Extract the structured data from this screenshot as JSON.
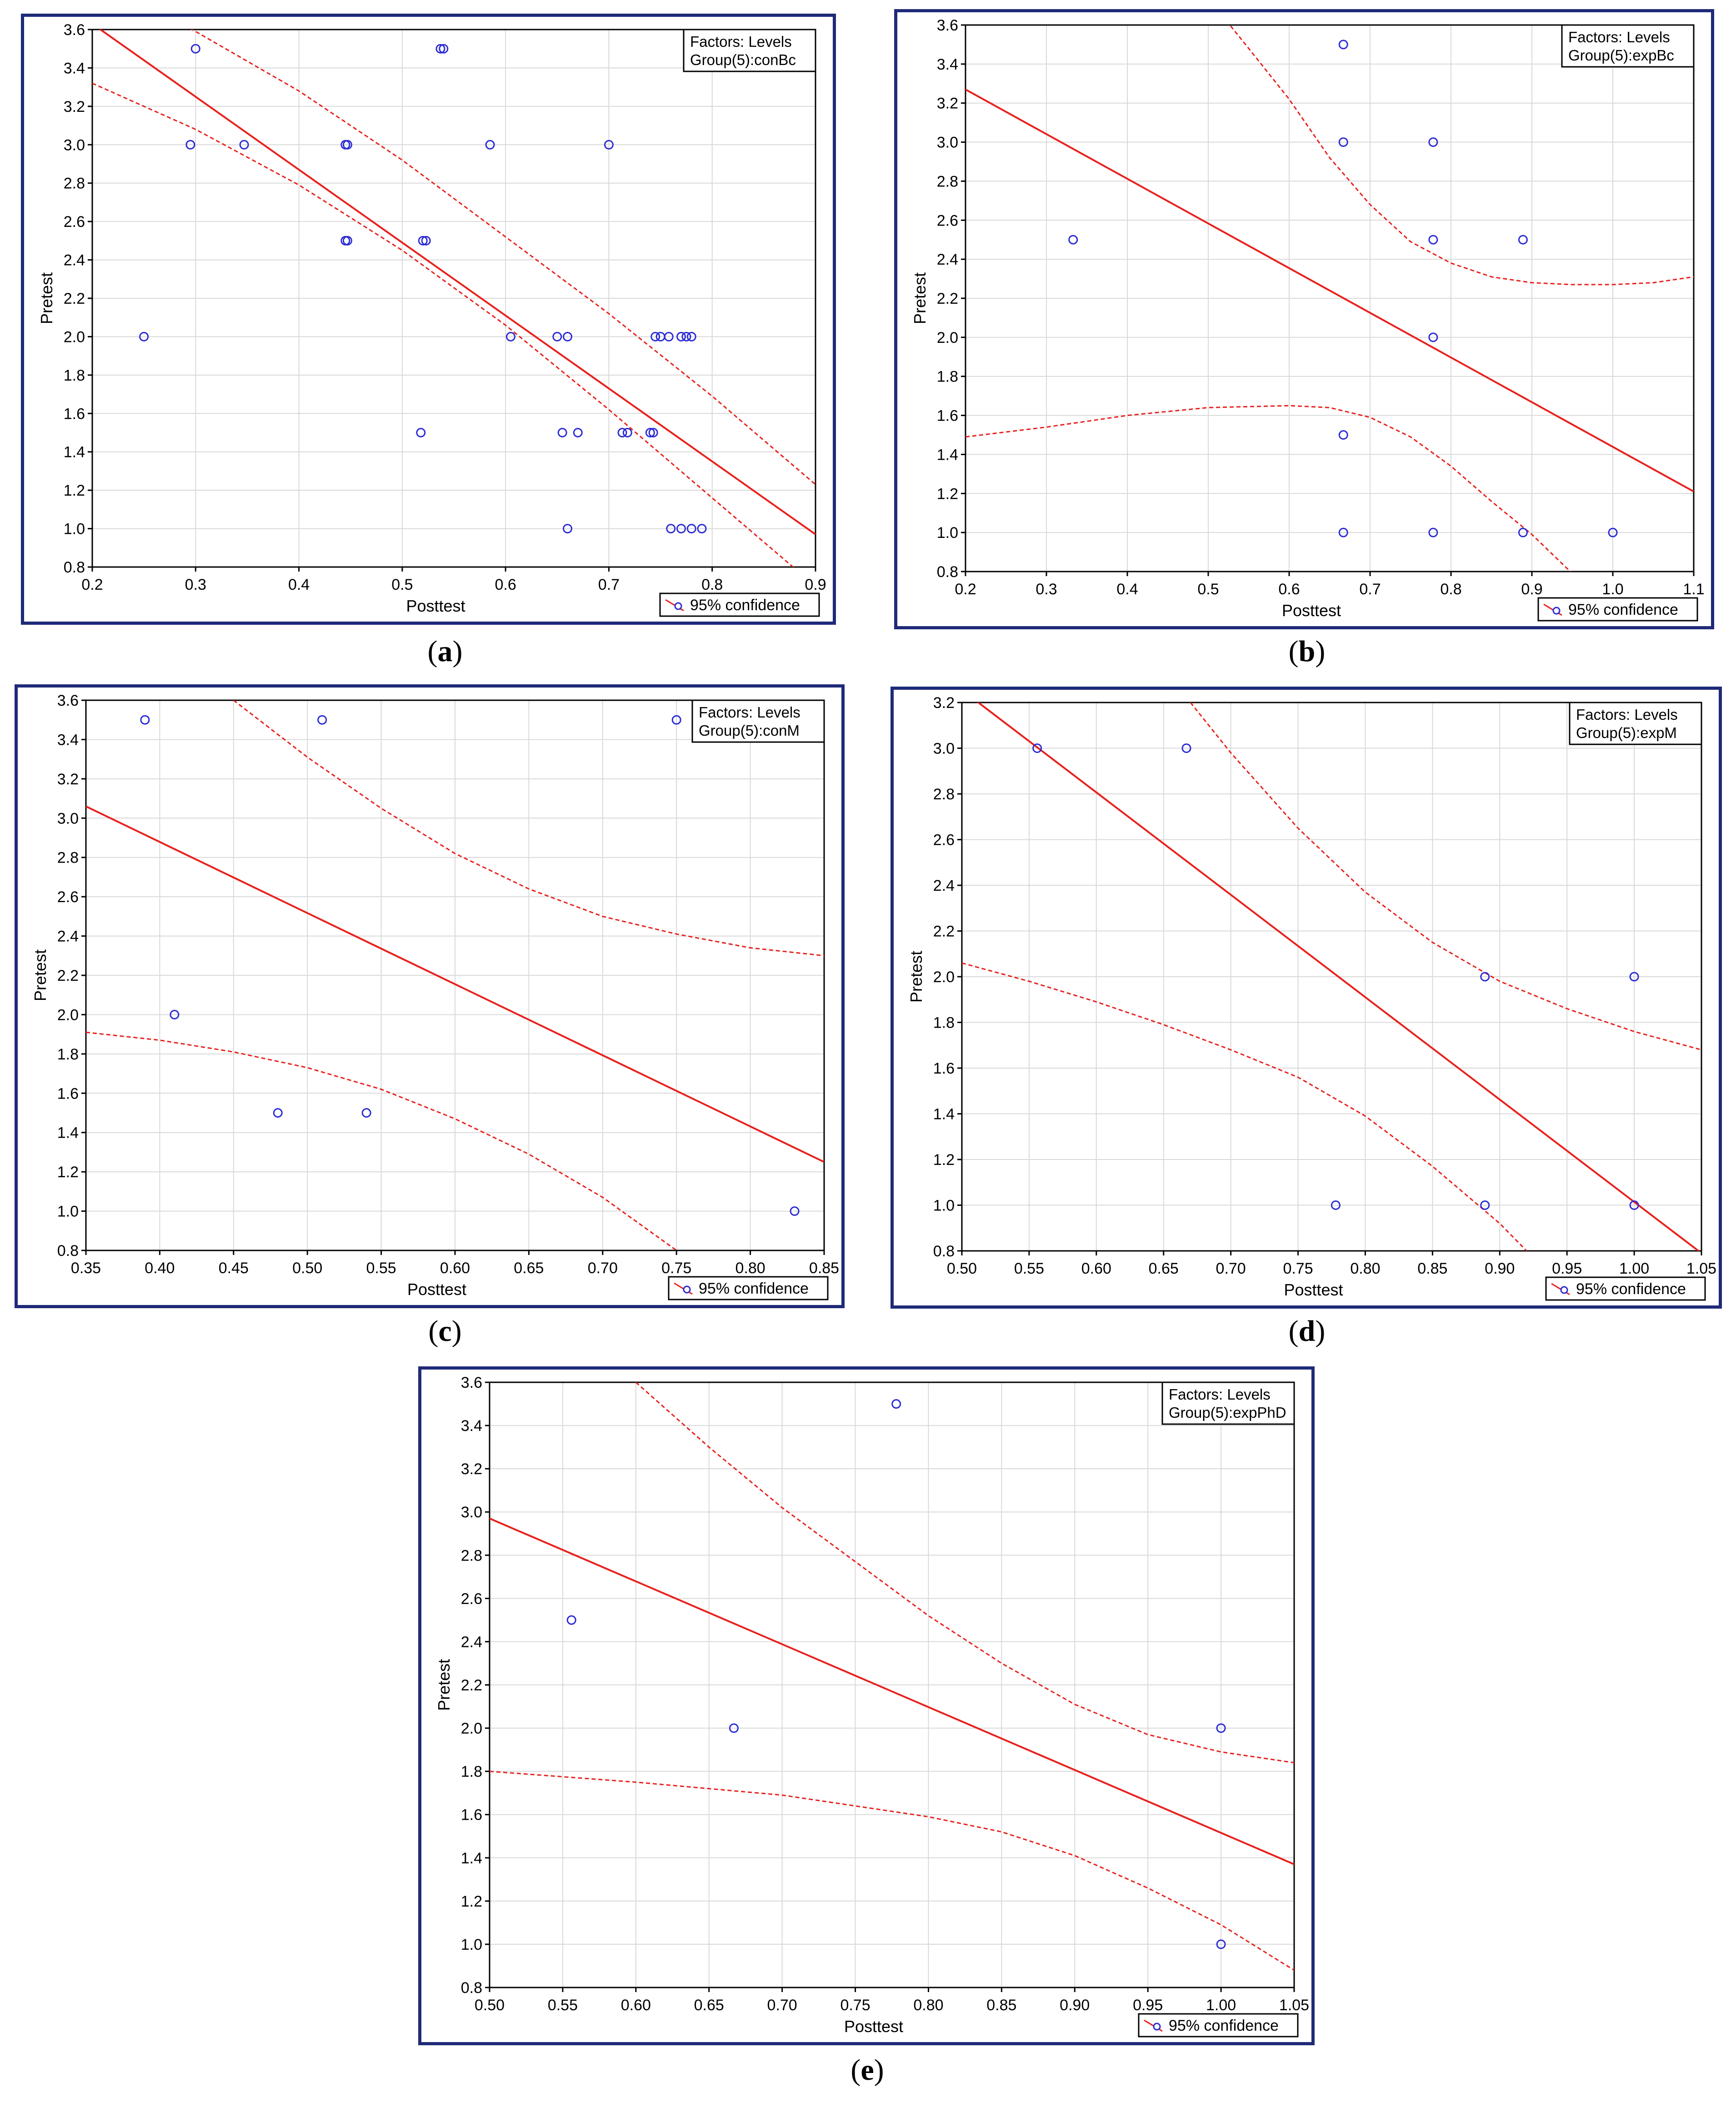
{
  "chart_data": [
    {
      "type": "scatter",
      "panel_label": "a",
      "xlabel": "Posttest",
      "ylabel": "Pretest",
      "xlim": [
        0.2,
        0.9
      ],
      "ylim": [
        0.8,
        3.6
      ],
      "xticks": [
        "0.2",
        "0.3",
        "0.4",
        "0.5",
        "0.6",
        "0.7",
        "0.8",
        "0.9"
      ],
      "yticks": [
        "0.8",
        "1.0",
        "1.2",
        "1.4",
        "1.6",
        "1.8",
        "2.0",
        "2.2",
        "2.4",
        "2.6",
        "2.8",
        "3.0",
        "3.2",
        "3.4",
        "3.6"
      ],
      "factors_title": "Factors: Levels",
      "factors_level": "Group(5):conBc",
      "legend_label": "95% confidence",
      "points": [
        [
          0.25,
          2.0
        ],
        [
          0.295,
          3.0
        ],
        [
          0.3,
          3.5
        ],
        [
          0.347,
          3.0
        ],
        [
          0.445,
          3.0
        ],
        [
          0.447,
          3.0
        ],
        [
          0.445,
          2.5
        ],
        [
          0.447,
          2.5
        ],
        [
          0.537,
          3.5
        ],
        [
          0.54,
          3.5
        ],
        [
          0.52,
          2.5
        ],
        [
          0.523,
          2.5
        ],
        [
          0.518,
          1.5
        ],
        [
          0.585,
          3.0
        ],
        [
          0.605,
          2.0
        ],
        [
          0.7,
          3.0
        ],
        [
          0.65,
          2.0
        ],
        [
          0.66,
          2.0
        ],
        [
          0.655,
          1.5
        ],
        [
          0.67,
          1.5
        ],
        [
          0.66,
          1.0
        ],
        [
          0.713,
          1.5
        ],
        [
          0.718,
          1.5
        ],
        [
          0.74,
          1.5
        ],
        [
          0.743,
          1.5
        ],
        [
          0.745,
          2.0
        ],
        [
          0.75,
          2.0
        ],
        [
          0.758,
          2.0
        ],
        [
          0.77,
          2.0
        ],
        [
          0.775,
          2.0
        ],
        [
          0.78,
          2.0
        ],
        [
          0.76,
          1.0
        ],
        [
          0.77,
          1.0
        ],
        [
          0.78,
          1.0
        ],
        [
          0.79,
          1.0
        ]
      ],
      "fit_line": [
        [
          0.2,
          3.63
        ],
        [
          0.9,
          0.97
        ]
      ],
      "ci_upper": [
        [
          0.2,
          3.86
        ],
        [
          0.3,
          3.59
        ],
        [
          0.4,
          3.28
        ],
        [
          0.5,
          2.92
        ],
        [
          0.6,
          2.52
        ],
        [
          0.7,
          2.12
        ],
        [
          0.8,
          1.69
        ],
        [
          0.9,
          1.23
        ]
      ],
      "ci_lower": [
        [
          0.2,
          3.32
        ],
        [
          0.3,
          3.08
        ],
        [
          0.4,
          2.79
        ],
        [
          0.5,
          2.45
        ],
        [
          0.6,
          2.06
        ],
        [
          0.7,
          1.62
        ],
        [
          0.8,
          1.16
        ],
        [
          0.9,
          0.7
        ]
      ]
    },
    {
      "type": "scatter",
      "panel_label": "b",
      "xlabel": "Posttest",
      "ylabel": "Pretest",
      "xlim": [
        0.2,
        1.1
      ],
      "ylim": [
        0.8,
        3.6
      ],
      "xticks": [
        "0.2",
        "0.3",
        "0.4",
        "0.5",
        "0.6",
        "0.7",
        "0.8",
        "0.9",
        "1.0",
        "1.1"
      ],
      "yticks": [
        "0.8",
        "1.0",
        "1.2",
        "1.4",
        "1.6",
        "1.8",
        "2.0",
        "2.2",
        "2.4",
        "2.6",
        "2.8",
        "3.0",
        "3.2",
        "3.4",
        "3.6"
      ],
      "factors_title": "Factors: Levels",
      "factors_level": "Group(5):expBc",
      "legend_label": "95% confidence",
      "points": [
        [
          0.333,
          2.5
        ],
        [
          0.667,
          3.5
        ],
        [
          0.667,
          3.0
        ],
        [
          0.667,
          1.5
        ],
        [
          0.667,
          1.0
        ],
        [
          0.778,
          3.0
        ],
        [
          0.778,
          2.5
        ],
        [
          0.778,
          2.0
        ],
        [
          0.778,
          1.0
        ],
        [
          0.889,
          2.5
        ],
        [
          0.889,
          1.0
        ],
        [
          1.0,
          1.0
        ]
      ],
      "fit_line": [
        [
          0.2,
          3.27
        ],
        [
          1.1,
          1.21
        ]
      ],
      "ci_upper": [
        [
          0.48,
          3.84
        ],
        [
          0.55,
          3.48
        ],
        [
          0.6,
          3.22
        ],
        [
          0.65,
          2.92
        ],
        [
          0.7,
          2.68
        ],
        [
          0.75,
          2.49
        ],
        [
          0.8,
          2.38
        ],
        [
          0.85,
          2.31
        ],
        [
          0.9,
          2.28
        ],
        [
          0.95,
          2.27
        ],
        [
          1.0,
          2.27
        ],
        [
          1.05,
          2.28
        ],
        [
          1.1,
          2.31
        ]
      ],
      "ci_lower": [
        [
          0.2,
          1.49
        ],
        [
          0.3,
          1.54
        ],
        [
          0.4,
          1.6
        ],
        [
          0.5,
          1.64
        ],
        [
          0.6,
          1.65
        ],
        [
          0.65,
          1.64
        ],
        [
          0.7,
          1.59
        ],
        [
          0.75,
          1.49
        ],
        [
          0.8,
          1.34
        ],
        [
          0.85,
          1.16
        ],
        [
          0.9,
          0.99
        ],
        [
          0.95,
          0.79
        ]
      ]
    },
    {
      "type": "scatter",
      "panel_label": "c",
      "xlabel": "Posttest",
      "ylabel": "Pretest",
      "xlim": [
        0.35,
        0.85
      ],
      "ylim": [
        0.8,
        3.6
      ],
      "xticks": [
        "0.35",
        "0.40",
        "0.45",
        "0.50",
        "0.55",
        "0.60",
        "0.65",
        "0.70",
        "0.75",
        "0.80",
        "0.85"
      ],
      "yticks": [
        "0.8",
        "1.0",
        "1.2",
        "1.4",
        "1.6",
        "1.8",
        "2.0",
        "2.2",
        "2.4",
        "2.6",
        "2.8",
        "3.0",
        "3.2",
        "3.4",
        "3.6"
      ],
      "factors_title": "Factors: Levels",
      "factors_level": "Group(5):conM",
      "legend_label": "95% confidence",
      "points": [
        [
          0.39,
          3.5
        ],
        [
          0.41,
          2.0
        ],
        [
          0.48,
          1.5
        ],
        [
          0.51,
          3.5
        ],
        [
          0.54,
          1.5
        ],
        [
          0.75,
          3.5
        ],
        [
          0.83,
          1.0
        ]
      ],
      "fit_line": [
        [
          0.35,
          3.06
        ],
        [
          0.85,
          1.25
        ]
      ],
      "ci_upper": [
        [
          0.45,
          3.6
        ],
        [
          0.5,
          3.31
        ],
        [
          0.55,
          3.05
        ],
        [
          0.6,
          2.82
        ],
        [
          0.65,
          2.64
        ],
        [
          0.7,
          2.5
        ],
        [
          0.75,
          2.41
        ],
        [
          0.8,
          2.34
        ],
        [
          0.85,
          2.3
        ]
      ],
      "ci_lower": [
        [
          0.35,
          1.91
        ],
        [
          0.4,
          1.87
        ],
        [
          0.45,
          1.81
        ],
        [
          0.5,
          1.73
        ],
        [
          0.55,
          1.62
        ],
        [
          0.6,
          1.47
        ],
        [
          0.65,
          1.29
        ],
        [
          0.7,
          1.07
        ],
        [
          0.75,
          0.8
        ]
      ]
    },
    {
      "type": "scatter",
      "panel_label": "d",
      "xlabel": "Posttest",
      "ylabel": "Pretest",
      "xlim": [
        0.5,
        1.05
      ],
      "ylim": [
        0.8,
        3.2
      ],
      "xticks": [
        "0.50",
        "0.55",
        "0.60",
        "0.65",
        "0.70",
        "0.75",
        "0.80",
        "0.85",
        "0.90",
        "0.95",
        "1.00",
        "1.05"
      ],
      "yticks": [
        "0.8",
        "1.0",
        "1.2",
        "1.4",
        "1.6",
        "1.8",
        "2.0",
        "2.2",
        "2.4",
        "2.6",
        "2.8",
        "3.0",
        "3.2"
      ],
      "factors_title": "Factors: Levels",
      "factors_level": "Group(5):expM",
      "legend_label": "95% confidence",
      "points": [
        [
          0.556,
          3.0
        ],
        [
          0.667,
          3.0
        ],
        [
          0.778,
          1.0
        ],
        [
          0.889,
          2.0
        ],
        [
          0.889,
          1.0
        ],
        [
          1.0,
          2.0
        ],
        [
          1.0,
          1.0
        ]
      ],
      "fit_line": [
        [
          0.51,
          3.21
        ],
        [
          1.05,
          0.79
        ]
      ],
      "ci_upper": [
        [
          0.67,
          3.2
        ],
        [
          0.7,
          2.98
        ],
        [
          0.75,
          2.65
        ],
        [
          0.8,
          2.37
        ],
        [
          0.85,
          2.15
        ],
        [
          0.9,
          1.98
        ],
        [
          0.95,
          1.86
        ],
        [
          1.0,
          1.76
        ],
        [
          1.05,
          1.68
        ]
      ],
      "ci_lower": [
        [
          0.5,
          2.06
        ],
        [
          0.55,
          1.98
        ],
        [
          0.6,
          1.89
        ],
        [
          0.65,
          1.79
        ],
        [
          0.7,
          1.68
        ],
        [
          0.75,
          1.56
        ],
        [
          0.8,
          1.39
        ],
        [
          0.85,
          1.17
        ],
        [
          0.9,
          0.92
        ],
        [
          0.92,
          0.8
        ]
      ]
    },
    {
      "type": "scatter",
      "panel_label": "e",
      "xlabel": "Posttest",
      "ylabel": "Pretest",
      "xlim": [
        0.5,
        1.05
      ],
      "ylim": [
        0.8,
        3.6
      ],
      "xticks": [
        "0.50",
        "0.55",
        "0.60",
        "0.65",
        "0.70",
        "0.75",
        "0.80",
        "0.85",
        "0.90",
        "0.95",
        "1.00",
        "1.05"
      ],
      "yticks": [
        "0.8",
        "1.0",
        "1.2",
        "1.4",
        "1.6",
        "1.8",
        "2.0",
        "2.2",
        "2.4",
        "2.6",
        "2.8",
        "3.0",
        "3.2",
        "3.4",
        "3.6"
      ],
      "factors_title": "Factors: Levels",
      "factors_level": "Group(5):expPhD",
      "legend_label": "95% confidence",
      "points": [
        [
          0.556,
          2.5
        ],
        [
          0.667,
          2.0
        ],
        [
          0.778,
          3.5
        ],
        [
          1.0,
          2.0
        ],
        [
          1.0,
          1.0
        ]
      ],
      "fit_line": [
        [
          0.5,
          2.97
        ],
        [
          1.05,
          1.37
        ]
      ],
      "ci_upper": [
        [
          0.6,
          3.6
        ],
        [
          0.65,
          3.3
        ],
        [
          0.7,
          3.02
        ],
        [
          0.75,
          2.77
        ],
        [
          0.8,
          2.52
        ],
        [
          0.85,
          2.3
        ],
        [
          0.9,
          2.11
        ],
        [
          0.95,
          1.97
        ],
        [
          1.0,
          1.89
        ],
        [
          1.05,
          1.84
        ]
      ],
      "ci_lower": [
        [
          0.5,
          1.8
        ],
        [
          0.6,
          1.75
        ],
        [
          0.7,
          1.69
        ],
        [
          0.8,
          1.59
        ],
        [
          0.85,
          1.52
        ],
        [
          0.9,
          1.41
        ],
        [
          0.95,
          1.26
        ],
        [
          1.0,
          1.09
        ],
        [
          1.05,
          0.88
        ]
      ]
    }
  ],
  "colors": {
    "frame": "#1f2a78",
    "fit": "#e8211d",
    "ci": "#e8211d",
    "points": "#2b2bd6",
    "grid": "#d9d9d9"
  }
}
